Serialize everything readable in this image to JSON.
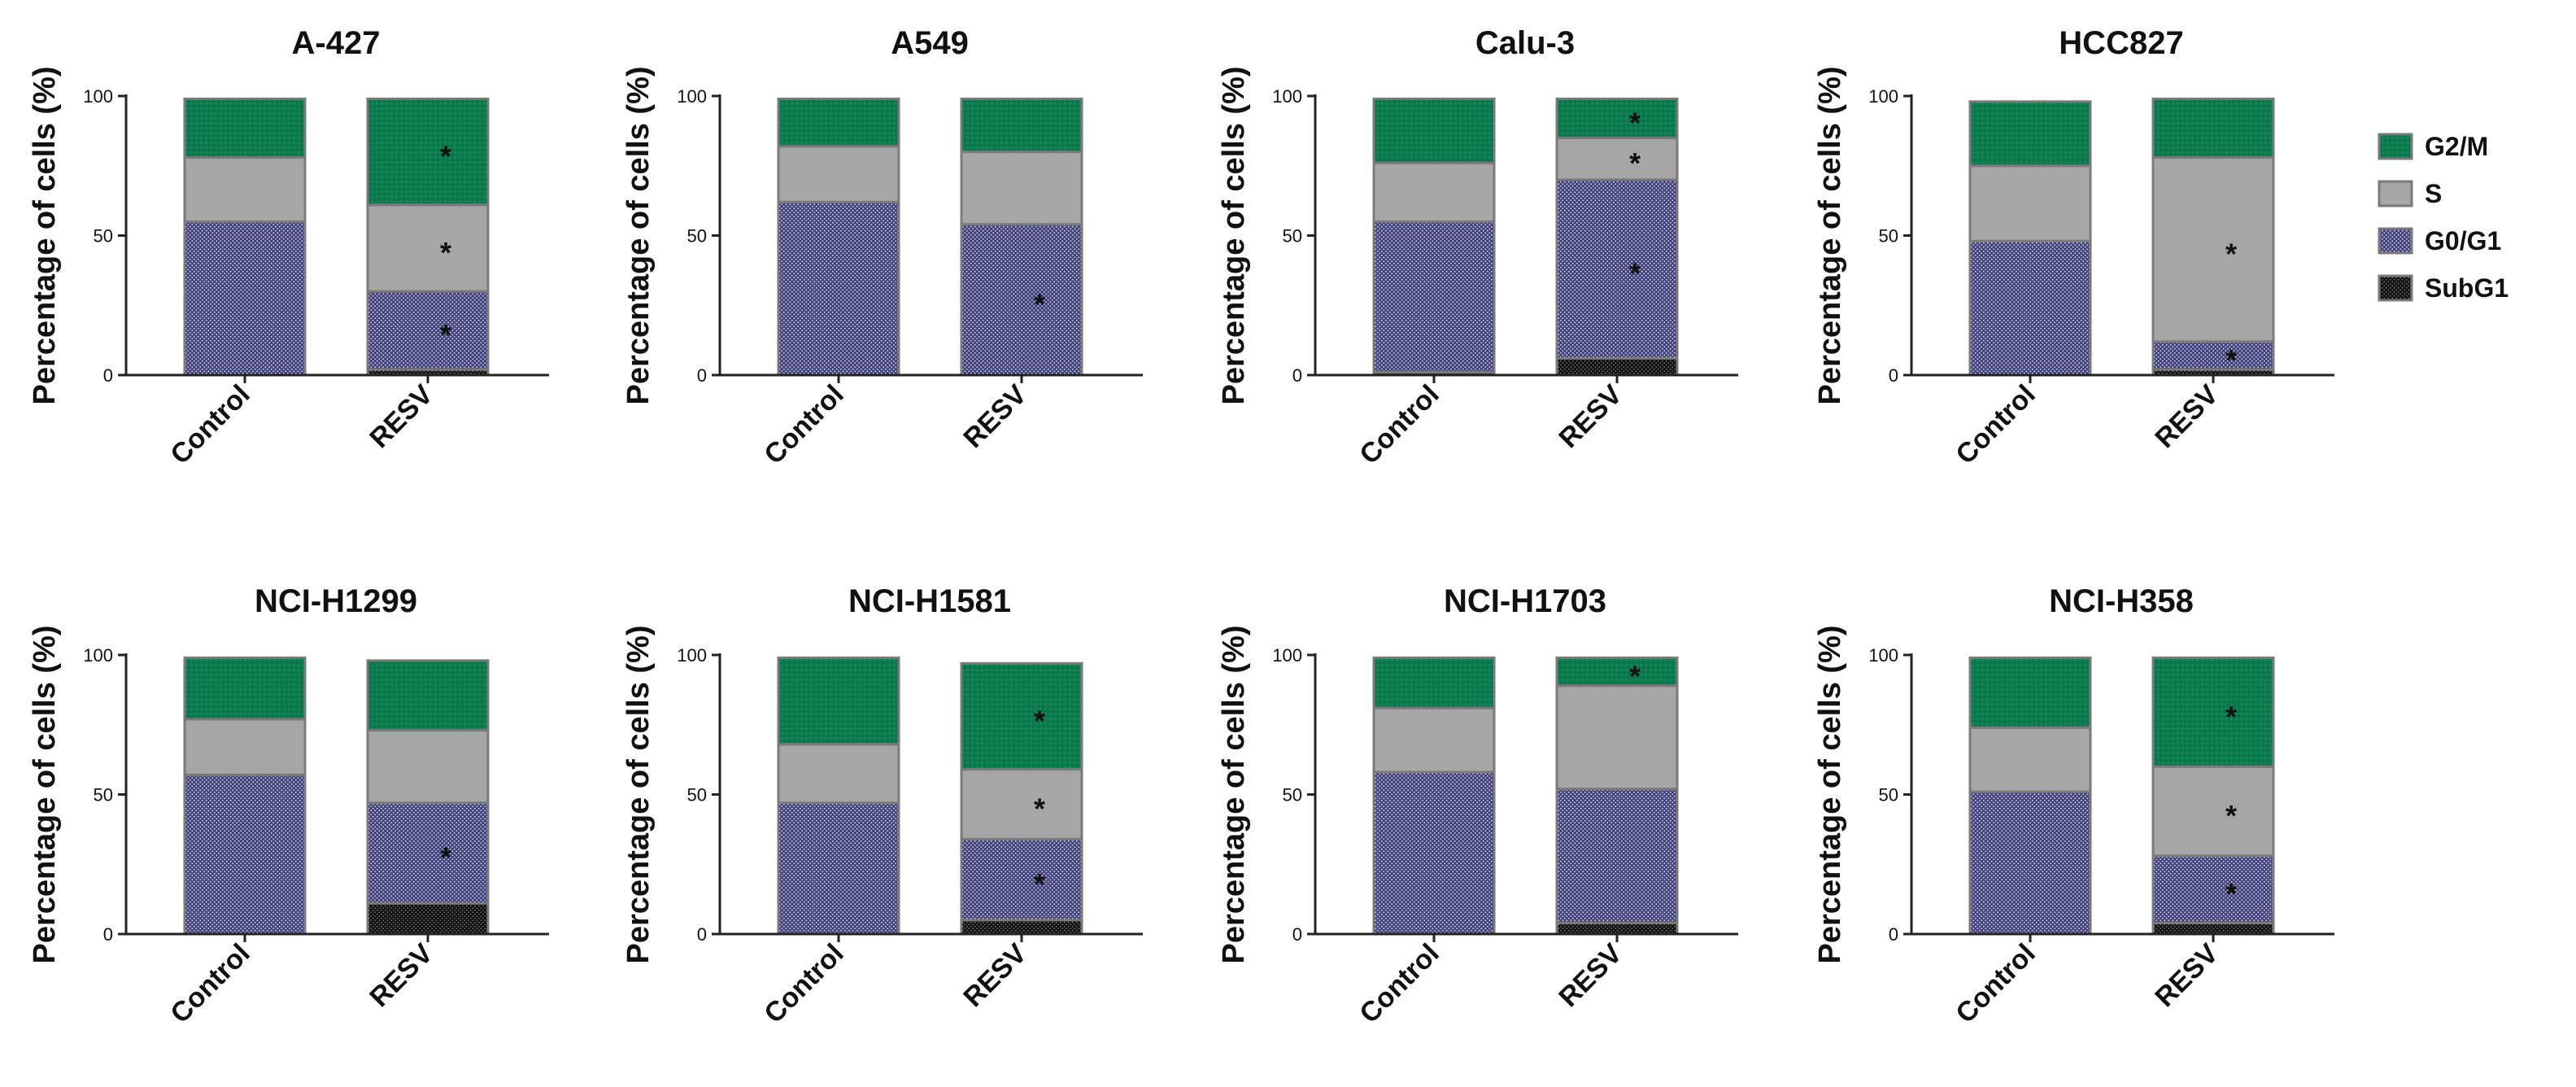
{
  "chart_data": {
    "type": "stacked-bar",
    "ylabel": "Percentage of cells (%)",
    "ylim": [
      0,
      100
    ],
    "yticks": [
      "0",
      "50",
      "100"
    ],
    "categories": [
      "Control",
      "RESV"
    ],
    "stack_order": [
      "SubG1",
      "G0/G1",
      "S",
      "G2/M"
    ],
    "legend": {
      "placement": "right",
      "entries": [
        {
          "name": "G2/M",
          "color": "#0b7a4e",
          "pattern": "green-dots"
        },
        {
          "name": "S",
          "color": "#a6a6a6",
          "pattern": "solid"
        },
        {
          "name": "G0/G1",
          "color": "#3f3f7a",
          "pattern": "navy-dots"
        },
        {
          "name": "SubG1",
          "color": "#111111",
          "pattern": "black-dots"
        }
      ]
    },
    "panels": [
      {
        "title": "A-427",
        "bars": [
          {
            "category": "Control",
            "SubG1": 0,
            "G0/G1": 55,
            "S": 23,
            "G2/M": 21,
            "stars": {}
          },
          {
            "category": "RESV",
            "SubG1": 2,
            "G0/G1": 28,
            "S": 31,
            "G2/M": 38,
            "stars": {
              "G0/G1": "*",
              "S": "*",
              "G2/M": "*"
            }
          }
        ]
      },
      {
        "title": "A549",
        "bars": [
          {
            "category": "Control",
            "SubG1": 0,
            "G0/G1": 62,
            "S": 20,
            "G2/M": 17,
            "stars": {}
          },
          {
            "category": "RESV",
            "SubG1": 0,
            "G0/G1": 54,
            "S": 26,
            "G2/M": 19,
            "stars": {
              "G0/G1": "*"
            }
          }
        ]
      },
      {
        "title": "Calu-3",
        "bars": [
          {
            "category": "Control",
            "SubG1": 1,
            "G0/G1": 54,
            "S": 21,
            "G2/M": 23,
            "stars": {}
          },
          {
            "category": "RESV",
            "SubG1": 6,
            "G0/G1": 64,
            "S": 15,
            "G2/M": 14,
            "stars": {
              "G0/G1": "*",
              "S": "*",
              "G2/M": "*"
            }
          }
        ]
      },
      {
        "title": "HCC827",
        "bars": [
          {
            "category": "Control",
            "SubG1": 0,
            "G0/G1": 48,
            "S": 27,
            "G2/M": 23,
            "stars": {}
          },
          {
            "category": "RESV",
            "SubG1": 2,
            "G0/G1": 10,
            "S": 66,
            "G2/M": 21,
            "stars": {
              "G0/G1": "*",
              "S": "*"
            }
          }
        ]
      },
      {
        "title": "NCI-H1299",
        "bars": [
          {
            "category": "Control",
            "SubG1": 0,
            "G0/G1": 57,
            "S": 20,
            "G2/M": 22,
            "stars": {}
          },
          {
            "category": "RESV",
            "SubG1": 11,
            "G0/G1": 36,
            "S": 26,
            "G2/M": 25,
            "stars": {
              "G0/G1": "*"
            }
          }
        ]
      },
      {
        "title": "NCI-H1581",
        "bars": [
          {
            "category": "Control",
            "SubG1": 0,
            "G0/G1": 47,
            "S": 21,
            "G2/M": 31,
            "stars": {}
          },
          {
            "category": "RESV",
            "SubG1": 5,
            "G0/G1": 29,
            "S": 25,
            "G2/M": 38,
            "stars": {
              "G0/G1": "*",
              "S": "*",
              "G2/M": "*"
            }
          }
        ]
      },
      {
        "title": "NCI-H1703",
        "bars": [
          {
            "category": "Control",
            "SubG1": 0,
            "G0/G1": 58,
            "S": 23,
            "G2/M": 18,
            "stars": {}
          },
          {
            "category": "RESV",
            "SubG1": 4,
            "G0/G1": 48,
            "S": 37,
            "G2/M": 10,
            "stars": {
              "G2/M": "*"
            }
          }
        ]
      },
      {
        "title": "NCI-H358",
        "bars": [
          {
            "category": "Control",
            "SubG1": 0,
            "G0/G1": 51,
            "S": 23,
            "G2/M": 25,
            "stars": {}
          },
          {
            "category": "RESV",
            "SubG1": 4,
            "G0/G1": 24,
            "S": 32,
            "G2/M": 39,
            "stars": {
              "G0/G1": "*",
              "S": "*",
              "G2/M": "*"
            }
          }
        ]
      }
    ]
  }
}
